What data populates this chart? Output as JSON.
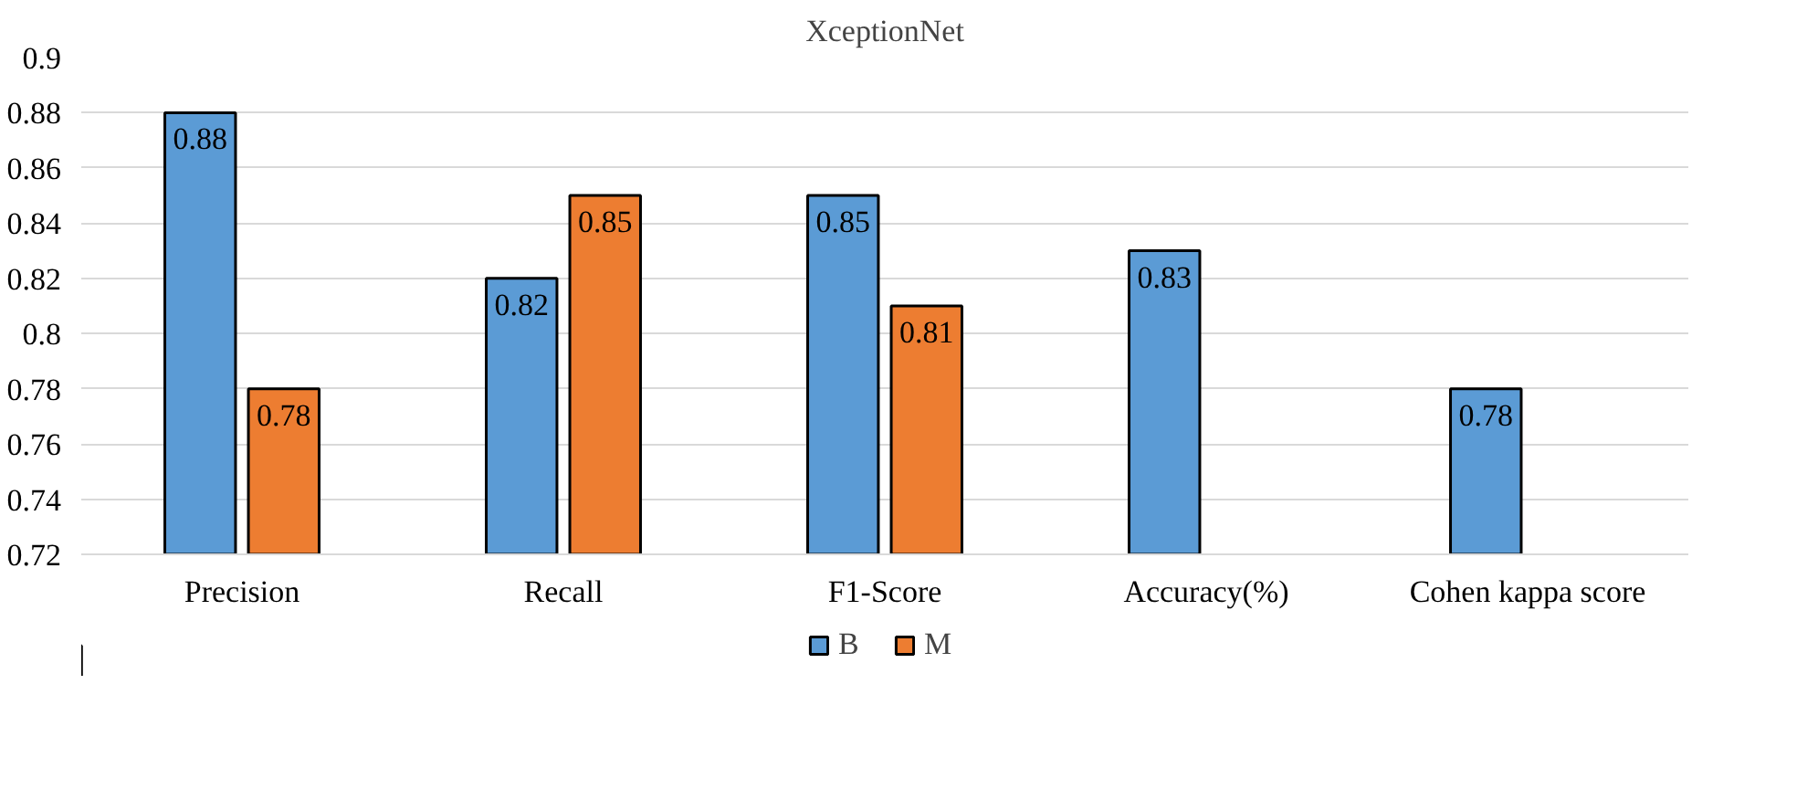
{
  "chart_data": {
    "type": "bar",
    "title": "XceptionNet",
    "categories": [
      "Precision",
      "Recall",
      "F1-Score",
      "Accuracy(%)",
      "Cohen kappa score"
    ],
    "series": [
      {
        "name": "B",
        "color": "#5b9bd5",
        "values": [
          0.88,
          0.82,
          0.85,
          0.83,
          0.78
        ]
      },
      {
        "name": "M",
        "color": "#ed7d31",
        "values": [
          0.78,
          0.85,
          0.81,
          null,
          null
        ]
      }
    ],
    "ylim": [
      0.72,
      0.9
    ],
    "yticks": [
      0.72,
      0.74,
      0.76,
      0.78,
      0.8,
      0.82,
      0.84,
      0.86,
      0.88,
      0.9
    ],
    "grid": "y",
    "legend": "bottom",
    "data_labels": true
  }
}
